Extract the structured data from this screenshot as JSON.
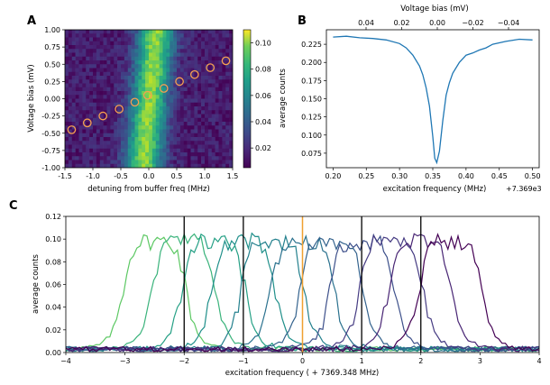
{
  "chart_data": [
    {
      "panel": "A",
      "type": "heatmap",
      "xlabel": "detuning from buffer freq (MHz)",
      "ylabel": "Voltage bias (mV)",
      "xlim": [
        -1.5,
        1.5
      ],
      "ylim": [
        -1.0,
        1.0
      ],
      "xticks": [
        "-1.5",
        "-1.0",
        "-0.5",
        "0.0",
        "0.5",
        "1.0",
        "1.5"
      ],
      "yticks": [
        "1.00",
        "0.75",
        "0.50",
        "0.25",
        "0.00",
        "-0.25",
        "-0.50",
        "-0.75",
        "-1.00"
      ],
      "colorbar": {
        "label": "average counts",
        "min": 0.005,
        "max": 0.11,
        "ticks": [
          "0.10",
          "0.08",
          "0.06",
          "0.04",
          "0.02"
        ],
        "colormap": "viridis"
      },
      "markers": {
        "x": [
          -1.38,
          -1.1,
          -0.82,
          -0.53,
          -0.25,
          -0.02,
          0.27,
          0.55,
          0.82,
          1.1,
          1.38
        ],
        "y": [
          -0.45,
          -0.35,
          -0.25,
          -0.15,
          -0.05,
          0.05,
          0.15,
          0.25,
          0.35,
          0.45,
          0.55
        ],
        "edge_color": "#f5a050"
      }
    },
    {
      "panel": "B",
      "type": "line",
      "xlabel": "excitation frequency (MHz)",
      "x_offset_label": "+7.369e3",
      "top_xlabel": "Voltage bias (mV)",
      "xlim": [
        0.19,
        0.51
      ],
      "ylim": [
        0.055,
        0.245
      ],
      "xticks": [
        "0.20",
        "0.25",
        "0.30",
        "0.35",
        "0.40",
        "0.45",
        "0.50"
      ],
      "yticks": [
        "0.225",
        "0.200",
        "0.175",
        "0.150",
        "0.125",
        "0.100",
        "0.075"
      ],
      "top_xticks": [
        "0.04",
        "0.02",
        "0.00",
        "−0.02",
        "−0.04"
      ],
      "line_color": "#1f77b4",
      "x": [
        0.2,
        0.22,
        0.24,
        0.26,
        0.28,
        0.3,
        0.31,
        0.32,
        0.33,
        0.335,
        0.34,
        0.345,
        0.35,
        0.353,
        0.356,
        0.36,
        0.365,
        0.37,
        0.375,
        0.38,
        0.39,
        0.4,
        0.41,
        0.42,
        0.43,
        0.44,
        0.46,
        0.48,
        0.5
      ],
      "y": [
        0.235,
        0.236,
        0.234,
        0.233,
        0.231,
        0.226,
        0.22,
        0.21,
        0.195,
        0.183,
        0.165,
        0.14,
        0.098,
        0.068,
        0.062,
        0.078,
        0.12,
        0.155,
        0.172,
        0.185,
        0.2,
        0.21,
        0.213,
        0.217,
        0.22,
        0.225,
        0.229,
        0.232,
        0.231
      ]
    },
    {
      "panel": "C",
      "type": "line",
      "xlabel": "excitation frequency ( + 7369.348 MHz)",
      "ylabel": "average counts",
      "xlim": [
        -4,
        4
      ],
      "ylim": [
        0.0,
        0.12
      ],
      "xticks": [
        "−4",
        "−3",
        "−2",
        "−1",
        "0",
        "1",
        "2",
        "3",
        "4"
      ],
      "yticks": [
        "0.12",
        "0.10",
        "0.08",
        "0.06",
        "0.04",
        "0.02",
        "0.00"
      ],
      "vlines": {
        "x": [
          -2,
          -1,
          1,
          2
        ],
        "color": "#000000"
      },
      "center_line": {
        "x": 0,
        "color": "#f0a030"
      },
      "series_centers": [
        -2.5,
        -2.0,
        -1.5,
        -1.0,
        -0.5,
        0.0,
        0.5,
        1.0,
        1.5,
        2.0,
        2.5
      ],
      "series_peak": 0.1,
      "series_halfwidth_mhz": 0.55,
      "series_colors": [
        "#5cc863",
        "#3ab37b",
        "#25a085",
        "#1f8f8a",
        "#23808d",
        "#2a718e",
        "#33628d",
        "#3c4f8a",
        "#453b82",
        "#482574",
        "#440154"
      ]
    }
  ],
  "panels": {
    "a": "A",
    "b": "B",
    "c": "C"
  }
}
